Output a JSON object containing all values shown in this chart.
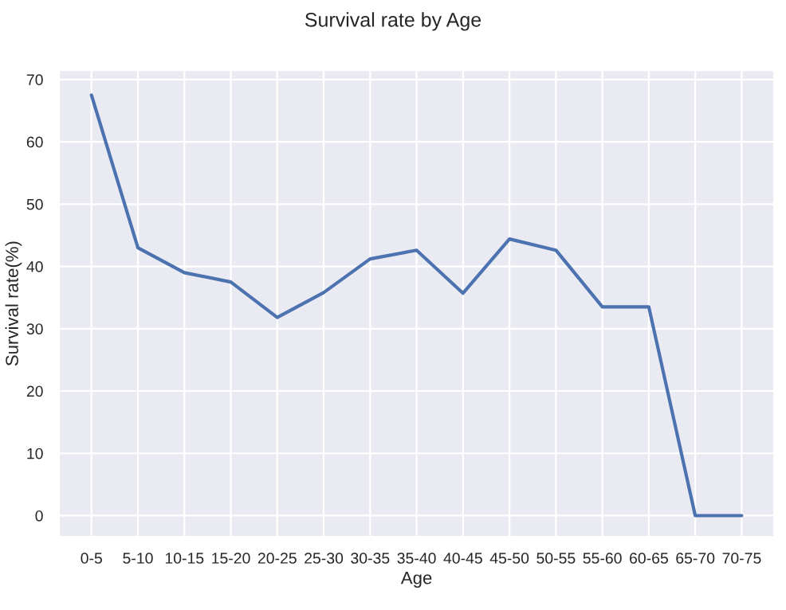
{
  "chart_data": {
    "type": "line",
    "title": "Survival rate by Age",
    "xlabel": "Age",
    "ylabel": "Survival rate(%)",
    "categories": [
      "0-5",
      "5-10",
      "10-15",
      "15-20",
      "20-25",
      "25-30",
      "30-35",
      "35-40",
      "40-45",
      "45-50",
      "50-55",
      "55-60",
      "60-65",
      "65-70",
      "70-75"
    ],
    "series": [
      {
        "color": "#4c72b0",
        "values": [
          67.5,
          43,
          39,
          37.5,
          31.8,
          35.8,
          41.2,
          42.6,
          35.7,
          44.4,
          42.6,
          33.5,
          33.5,
          0,
          0
        ]
      }
    ],
    "ylim": [
      -3.4,
      71.5
    ],
    "yticks": [
      0,
      10,
      20,
      30,
      40,
      50,
      60,
      70
    ],
    "grid": true,
    "legend": false,
    "marker": "none",
    "line_style": "solid"
  }
}
